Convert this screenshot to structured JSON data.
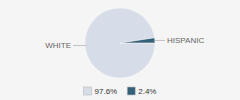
{
  "chart_data": {
    "type": "pie",
    "categories": [
      "WHITE",
      "HISPANIC"
    ],
    "values": [
      97.6,
      2.4
    ],
    "value_labels": [
      "97.6%",
      "2.4%"
    ],
    "colors": [
      "#d6dde8",
      "#35607a"
    ],
    "legend": "bottom"
  }
}
